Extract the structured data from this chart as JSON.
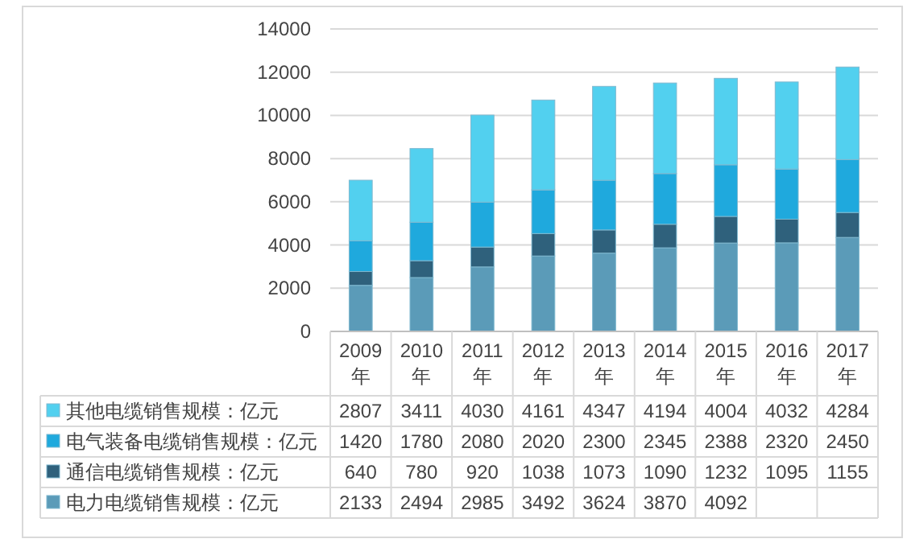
{
  "chart_data": {
    "type": "bar",
    "stacked": true,
    "categories": [
      "2009年",
      "2010年",
      "2011年",
      "2012年",
      "2013年",
      "2014年",
      "2015年",
      "2016年",
      "2017年"
    ],
    "series": [
      {
        "name": "电力电缆销售规模：亿元",
        "color": "#5b9bb8",
        "values": [
          2133,
          2494,
          2985,
          3492,
          3624,
          3870,
          4092,
          4100,
          4350
        ],
        "value_labels": [
          "2133",
          "2494",
          "2985",
          "3492",
          "3624",
          "3870",
          "4092",
          null,
          null
        ]
      },
      {
        "name": "通信电缆销售规模：亿元",
        "color": "#2f617c",
        "values": [
          640,
          780,
          920,
          1038,
          1073,
          1090,
          1232,
          1095,
          1155
        ],
        "value_labels": [
          "640",
          "780",
          "920",
          "1038",
          "1073",
          "1090",
          "1232",
          "1095",
          "1155"
        ]
      },
      {
        "name": "电气装备电缆销售规模：亿元",
        "color": "#1fa9dd",
        "values": [
          1420,
          1780,
          2080,
          2020,
          2300,
          2345,
          2388,
          2320,
          2450
        ],
        "value_labels": [
          "1420",
          "1780",
          "2080",
          "2020",
          "2300",
          "2345",
          "2388",
          "2320",
          "2450"
        ]
      },
      {
        "name": "其他电缆销售规模：亿元",
        "color": "#52d0ef",
        "values": [
          2807,
          3411,
          4030,
          4161,
          4347,
          4194,
          4004,
          4032,
          4284
        ],
        "value_labels": [
          "2807",
          "3411",
          "4030",
          "4161",
          "4347",
          "4194",
          "4004",
          "4032",
          "4284"
        ]
      }
    ],
    "ylim": [
      0,
      14000
    ],
    "yticks": [
      0,
      2000,
      4000,
      6000,
      8000,
      10000,
      12000,
      14000
    ],
    "grid": "y",
    "legend": "bottom"
  }
}
